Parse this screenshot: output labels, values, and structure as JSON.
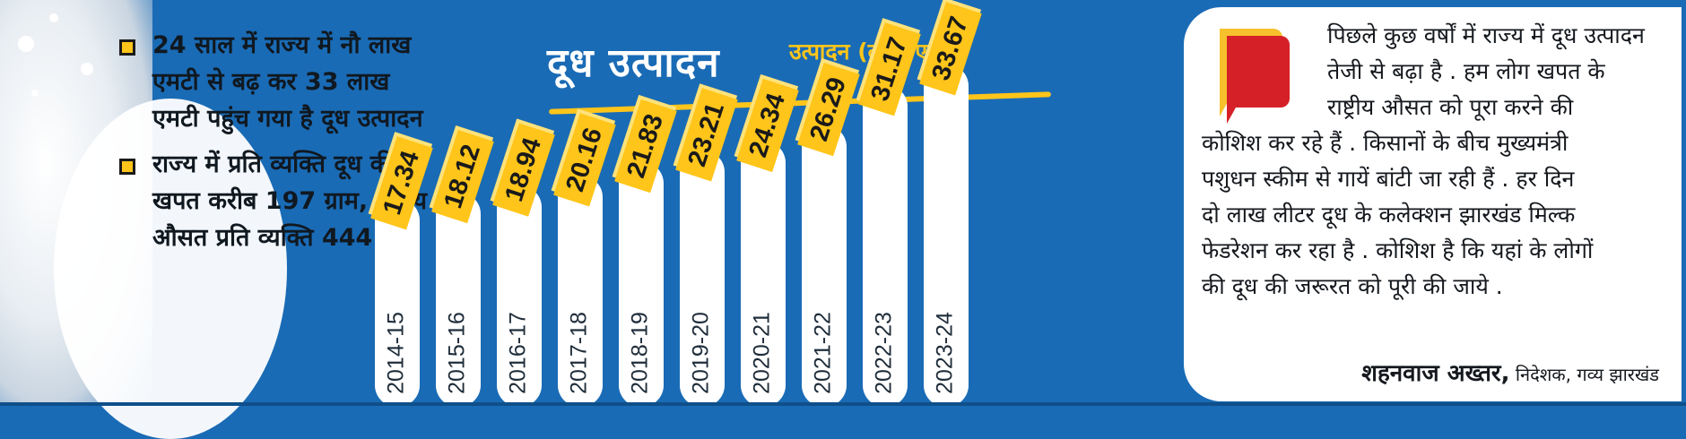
{
  "bullets": [
    "24 साल में राज्य में नौ लाख एमटी से बढ़ कर 33 लाख एमटी पहुंच गया है दूध उत्पादन",
    "राज्य में प्रति व्यक्ति दूध की खपत करीब 197 ग्राम, राष्ट्रीय औसत प्रति व्यक्ति 444 ग्राम"
  ],
  "colors": {
    "background": "#1a6bb5",
    "accent": "#ffc51a",
    "bar": "#ffffff",
    "label_text": "#1f2d3a",
    "quote_red": "#d62027"
  },
  "chart_data": {
    "type": "bar",
    "title": "दूध उत्पादन",
    "subtitle": "उत्पादन (लाख एमटी)",
    "categories": [
      "2014-15",
      "2015-16",
      "2016-17",
      "2017-18",
      "2018-19",
      "2019-20",
      "2020-21",
      "2021-22",
      "2022-23",
      "2023-24"
    ],
    "values": [
      17.34,
      18.12,
      18.94,
      20.16,
      21.83,
      23.21,
      24.34,
      26.29,
      31.17,
      33.67
    ],
    "value_labels": [
      "17.34",
      "18.12",
      "18.94",
      "20.16",
      "21.83",
      "23.21",
      "24.34",
      "26.29",
      "31.17",
      "33.67"
    ],
    "grid": false,
    "legend": "none"
  },
  "quote": {
    "lines": [
      "पिछले कुछ वर्षों में राज्य में दूध उत्पादन",
      "तेजी से बढ़ा है . हम लोग खपत के",
      "राष्ट्रीय औसत को पूरा करने की",
      "कोशिश कर रहे हैं . किसानों के बीच मुख्यमंत्री",
      "पशुधन स्कीम से गायें बांटी जा रही हैं . हर दिन",
      "दो लाख लीटर दूध के कलेक्शन झारखंड मिल्क",
      "फेडरेशन कर रहा है . कोशिश है कि यहां के लोगों",
      "की दूध की जरूरत को पूरी की जाये ."
    ],
    "author_name": "शहनवाज अख्तर,",
    "author_title": "निदेशक, गव्य झारखंड",
    "icon": "speech-bubble-icon"
  }
}
